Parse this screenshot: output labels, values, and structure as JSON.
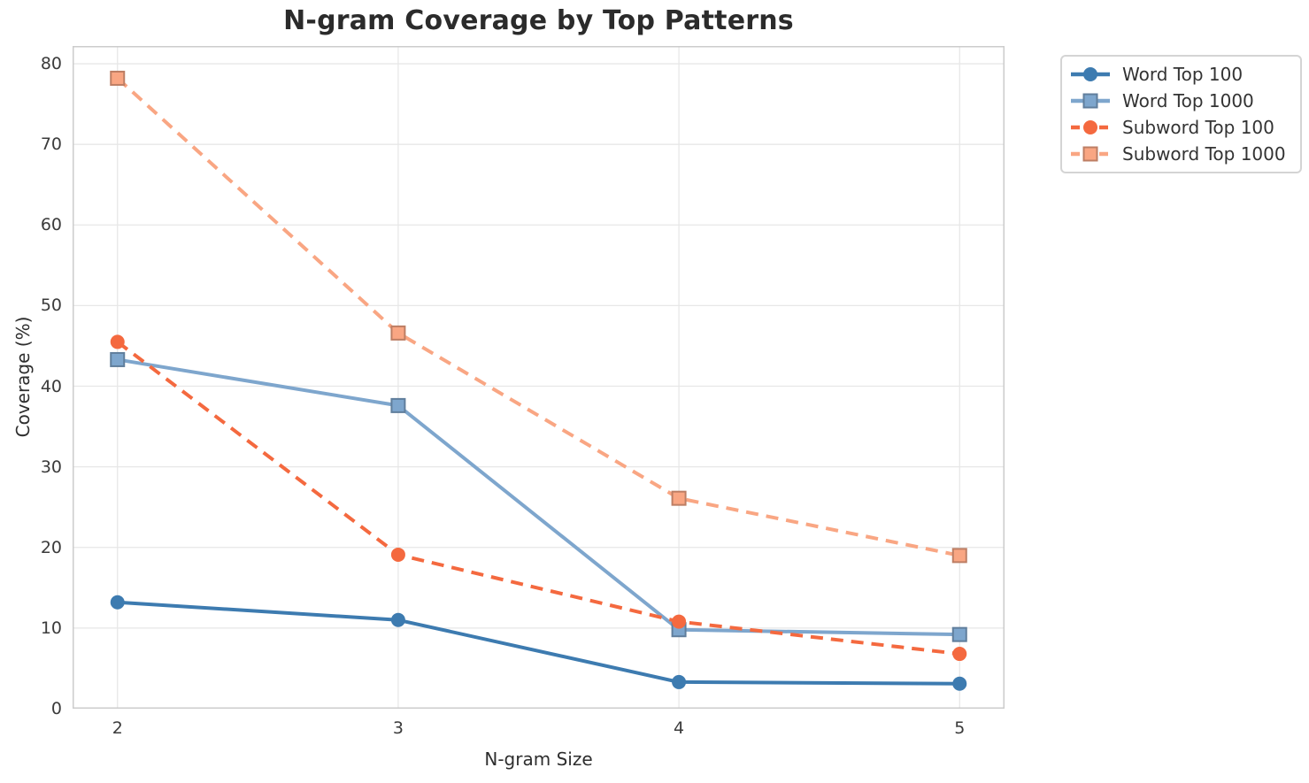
{
  "chart_data": {
    "type": "line",
    "title": "N-gram Coverage by Top Patterns",
    "xlabel": "N-gram Size",
    "ylabel": "Coverage (%)",
    "x": [
      2,
      3,
      4,
      5
    ],
    "xticks": [
      2,
      3,
      4,
      5
    ],
    "yticks": [
      0,
      10,
      20,
      30,
      40,
      50,
      60,
      70,
      80
    ],
    "xlim": [
      1.84,
      5.16
    ],
    "ylim": [
      0,
      82.2
    ],
    "grid": true,
    "grid_color": "#e7e7e7",
    "spine_color": "#cccccc",
    "legend_position": "outside-upper-right",
    "series": [
      {
        "name": "Word Top 100",
        "color": "#3d7bb0",
        "line_style": "solid",
        "marker": "circle",
        "values": [
          13.2,
          11.0,
          3.3,
          3.1
        ]
      },
      {
        "name": "Word Top 1000",
        "color": "#7ea6cd",
        "line_style": "solid",
        "marker": "square",
        "values": [
          43.3,
          37.6,
          9.8,
          9.2
        ]
      },
      {
        "name": "Subword Top 100",
        "color": "#f4693f",
        "line_style": "dashed",
        "marker": "circle",
        "values": [
          45.5,
          19.1,
          10.8,
          6.8
        ]
      },
      {
        "name": "Subword Top 1000",
        "color": "#f9a683",
        "line_style": "dashed",
        "marker": "square",
        "values": [
          78.2,
          46.6,
          26.1,
          19.0
        ]
      }
    ]
  }
}
